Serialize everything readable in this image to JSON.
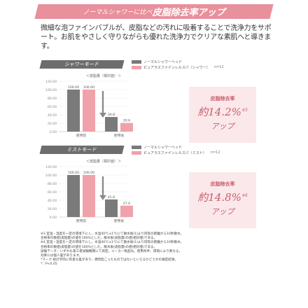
{
  "header": {
    "lead": "ノーマルシャワーに比べ",
    "title": "皮脂除去率アップ"
  },
  "intro_text": "微細な泡ファインバブルが、皮脂などの汚れに吸着することで洗浄力をサポート。お肌をやさしく守りながらも優れた洗浄力でクリアな素肌へと導きます。",
  "colors": {
    "accent": "#e8909b",
    "normal": "#7a7a7a",
    "pink": "#f0a2aa",
    "tag": "#6d6d6d"
  },
  "chart_data": [
    {
      "type": "bar",
      "panel_label": "シャワーモード",
      "title": "＜皮脂量（相対値）＞",
      "categories": [
        "使用前",
        "使用後"
      ],
      "series": [
        {
          "name": "ノーマルシャワーヘッド",
          "values": [
            100.0,
            34.8
          ]
        },
        {
          "name": "ピュアラスファインレルスパ（シャワー）",
          "values": [
            100.0,
            20.6
          ]
        }
      ],
      "n_label": "n=12",
      "ylim": [
        0,
        120
      ],
      "yticks": [
        "0.00",
        "20.00",
        "40.00",
        "60.00",
        "80.00",
        "100.00",
        "120.00"
      ],
      "data_labels": [
        "100.00",
        "100.00",
        "34.8",
        "20.6"
      ],
      "callout": {
        "label": "皮脂除去率",
        "value": "約14.2%",
        "mark": "※3",
        "suffix": "アップ"
      }
    },
    {
      "type": "bar",
      "panel_label": "ミストモード",
      "title": "＜皮脂量（相対値）＞",
      "categories": [
        "使用前",
        "使用後"
      ],
      "series": [
        {
          "name": "ノーマルシャワーヘッド",
          "values": [
            100.0,
            41.8
          ]
        },
        {
          "name": "ピュアラスファインレルスパ（ミスト）",
          "values": [
            100.0,
            27.0
          ]
        }
      ],
      "n_label": "n=12",
      "ylim": [
        0,
        120
      ],
      "yticks": [
        "0.00",
        "20.00",
        "40.00",
        "60.00",
        "80.00",
        "100.00",
        "120.00"
      ],
      "data_labels": [
        "100.00",
        "100.00",
        "41.8",
        "27.0"
      ],
      "callout": {
        "label": "皮脂除去率",
        "value": "約14.8%",
        "mark": "※4",
        "suffix": "アップ"
      }
    }
  ],
  "notes": [
    "※3 室温・湿度を一定の環境下にし、水温40℃±1℃にて散水後(1)より同等の距離から10秒散水。",
    "合格率の数値(皮脂量)の値を100%とした。散水後(皮脂量)の値(相対値)である。",
    "※4 室温・湿度を一定の環境下にし、水温40℃±1℃にて散水後(1)より同等の距離から10秒散水。",
    "合格率の数値(皮脂量)の値を100%とした。散水後(皮脂量)の値(相対値)である。",
    "試験データ：いずれも第三者試験機関にて測定。メーカー製品比。使用条件、環境により異なる。",
    "効果には個人差があります。",
    "*マーク 統計学的に有意な差があり、偶然起こったものではないといえるかどうかの検定結果。",
    "*：P<0.05"
  ]
}
